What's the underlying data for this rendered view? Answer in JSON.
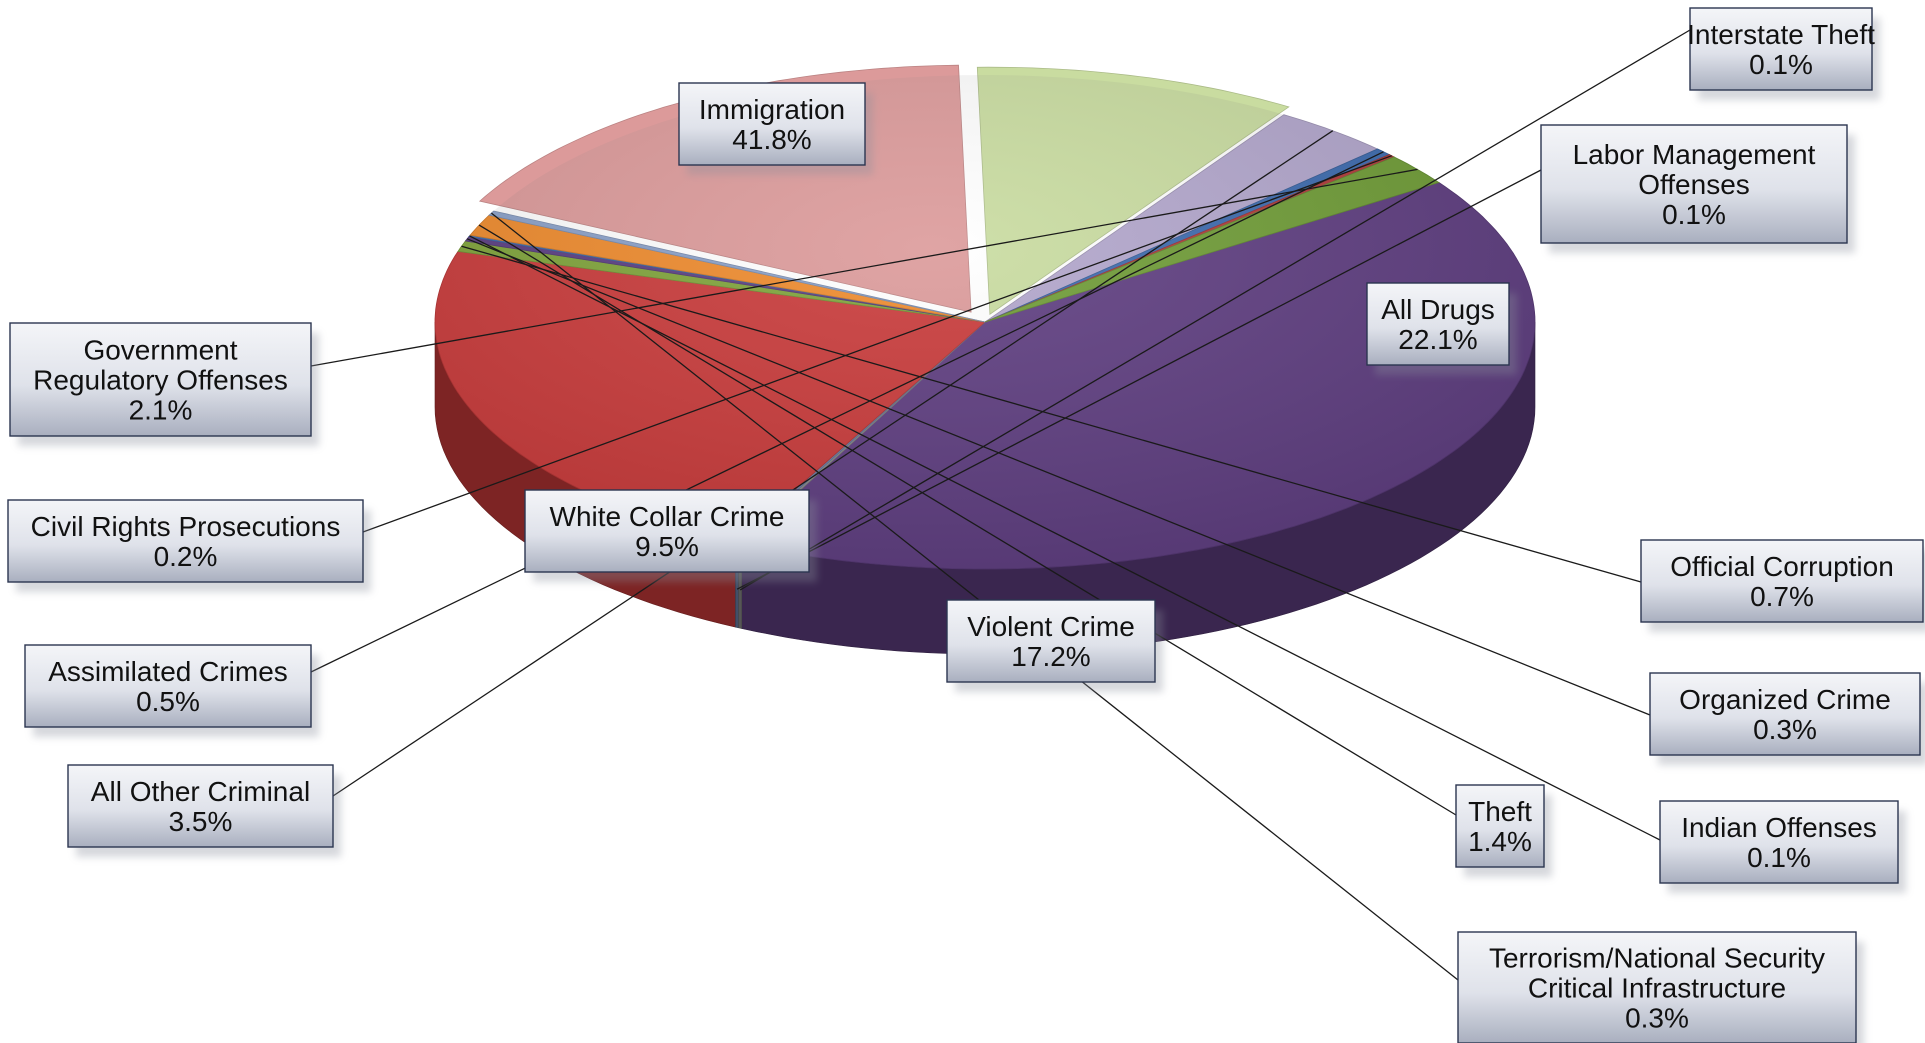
{
  "chart_data": {
    "type": "pie",
    "style": "3d-exploded-perspective",
    "title": "",
    "slices": [
      {
        "label": [
          "Immigration"
        ],
        "value": 41.8,
        "value_label": "41.8%",
        "color": "#5e3d80"
      },
      {
        "label": [
          "Interstate Theft"
        ],
        "value": 0.1,
        "value_label": "0.1%",
        "color": "#8a8a8a"
      },
      {
        "label": [
          "Labor Management",
          "Offenses"
        ],
        "value": 0.1,
        "value_label": "0.1%",
        "color": "#6b7fa8"
      },
      {
        "label": [
          "All Drugs"
        ],
        "value": 22.1,
        "value_label": "22.1%",
        "color": "#c93a3a"
      },
      {
        "label": [
          "Official Corruption"
        ],
        "value": 0.7,
        "value_label": "0.7%",
        "color": "#7fa43a"
      },
      {
        "label": [
          "Organized Crime"
        ],
        "value": 0.3,
        "value_label": "0.3%",
        "color": "#5a3d82"
      },
      {
        "label": [
          "Indian Offenses"
        ],
        "value": 0.1,
        "value_label": "0.1%",
        "color": "#3d6db5"
      },
      {
        "label": [
          "Theft"
        ],
        "value": 1.4,
        "value_label": "1.4%",
        "color": "#ee8a2c"
      },
      {
        "label": [
          "Terrorism/National Security",
          "Critical Infrastructure"
        ],
        "value": 0.3,
        "value_label": "0.3%",
        "color": "#8aa0c8"
      },
      {
        "label": [
          "Violent Crime"
        ],
        "value": 17.2,
        "value_label": "17.2%",
        "color": "#dc9a9a"
      },
      {
        "label": [
          "White Collar Crime"
        ],
        "value": 9.5,
        "value_label": "9.5%",
        "color": "#c9dca0"
      },
      {
        "label": [
          "All Other Criminal"
        ],
        "value": 3.5,
        "value_label": "3.5%",
        "color": "#b2a6cc"
      },
      {
        "label": [
          "Assimilated Crimes"
        ],
        "value": 0.5,
        "value_label": "0.5%",
        "color": "#3c6aae"
      },
      {
        "label": [
          "Civil Rights Prosecutions"
        ],
        "value": 0.2,
        "value_label": "0.2%",
        "color": "#b03a3a"
      },
      {
        "label": [
          "Government",
          "Regulatory Offenses"
        ],
        "value": 2.1,
        "value_label": "2.1%",
        "color": "#6f9c36"
      }
    ]
  }
}
